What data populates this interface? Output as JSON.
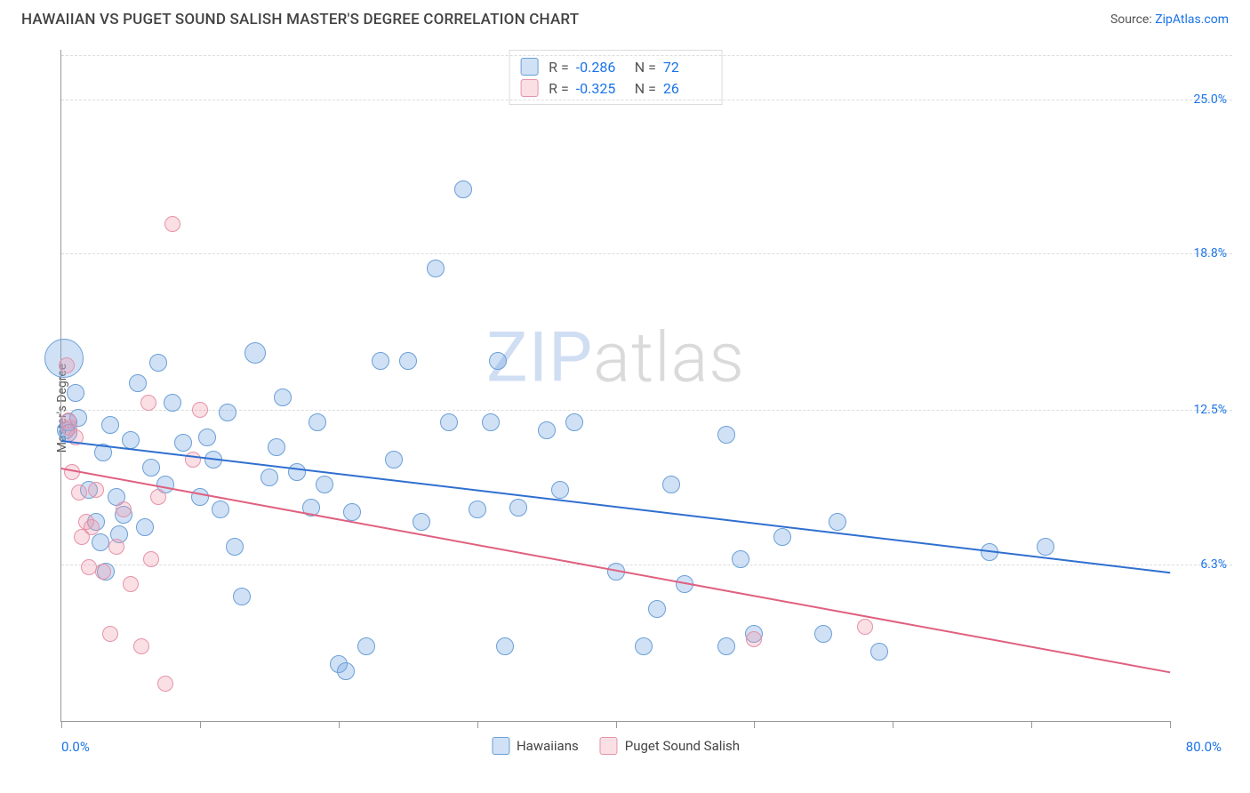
{
  "title": "HAWAIIAN VS PUGET SOUND SALISH MASTER'S DEGREE CORRELATION CHART",
  "source_prefix": "Source: ",
  "source_link_text": "ZipAtlas.com",
  "yaxis_title": "Master's Degree",
  "watermark_a": "ZIP",
  "watermark_b": "atlas",
  "chart": {
    "type": "scatter",
    "xlim": [
      0,
      80
    ],
    "ylim": [
      0,
      27
    ],
    "x_min_label": "0.0%",
    "x_max_label": "80.0%",
    "x_ticks": [
      0,
      10,
      20,
      30,
      40,
      50,
      60,
      70,
      80
    ],
    "y_gridlines": [
      {
        "v": 6.3,
        "label": "6.3%",
        "color": "#1a73e8"
      },
      {
        "v": 12.5,
        "label": "12.5%",
        "color": "#1a73e8"
      },
      {
        "v": 18.8,
        "label": "18.8%",
        "color": "#1a73e8"
      },
      {
        "v": 25.0,
        "label": "25.0%",
        "color": "#1a73e8"
      }
    ],
    "background_color": "#ffffff",
    "grid_color": "#dddddd",
    "series": [
      {
        "name": "Hawaiians",
        "fill": "rgba(120,170,230,0.35)",
        "stroke": "#6b9fd6",
        "trend_color": "#2f6fd0",
        "trend": {
          "x1": 0,
          "y1": 11.3,
          "x2": 80,
          "y2": 6.0
        },
        "R": "-0.286",
        "N": "72",
        "marker_r": 10,
        "points": [
          [
            0.2,
            14.6,
            22
          ],
          [
            0.3,
            11.7
          ],
          [
            0.5,
            12.0
          ],
          [
            0.5,
            11.6
          ],
          [
            1.0,
            13.2
          ],
          [
            1.2,
            12.2
          ],
          [
            2.0,
            9.3
          ],
          [
            2.5,
            8.0
          ],
          [
            2.8,
            7.2
          ],
          [
            3.0,
            10.8
          ],
          [
            3.2,
            6.0
          ],
          [
            3.5,
            11.9
          ],
          [
            4.0,
            9.0
          ],
          [
            4.2,
            7.5
          ],
          [
            4.5,
            8.3
          ],
          [
            5.0,
            11.3
          ],
          [
            5.5,
            13.6
          ],
          [
            6.0,
            7.8
          ],
          [
            6.5,
            10.2
          ],
          [
            7.0,
            14.4
          ],
          [
            7.5,
            9.5
          ],
          [
            8.0,
            12.8
          ],
          [
            8.8,
            11.2
          ],
          [
            10.0,
            9.0
          ],
          [
            10.5,
            11.4
          ],
          [
            11.0,
            10.5
          ],
          [
            11.5,
            8.5
          ],
          [
            12.0,
            12.4
          ],
          [
            12.5,
            7.0
          ],
          [
            13.0,
            5.0
          ],
          [
            14.0,
            14.8,
            12
          ],
          [
            15.0,
            9.8
          ],
          [
            15.5,
            11.0
          ],
          [
            16.0,
            13.0
          ],
          [
            17.0,
            10.0
          ],
          [
            18.0,
            8.6
          ],
          [
            18.5,
            12.0
          ],
          [
            19.0,
            9.5
          ],
          [
            20.0,
            2.3
          ],
          [
            20.5,
            2.0
          ],
          [
            21.0,
            8.4
          ],
          [
            22.0,
            3.0
          ],
          [
            23.0,
            14.5
          ],
          [
            24.0,
            10.5
          ],
          [
            25.0,
            14.5
          ],
          [
            26.0,
            8.0
          ],
          [
            27.0,
            18.2
          ],
          [
            28.0,
            12.0
          ],
          [
            29.0,
            21.4
          ],
          [
            30.0,
            8.5
          ],
          [
            31.5,
            14.5
          ],
          [
            31.0,
            12.0
          ],
          [
            32.0,
            3.0
          ],
          [
            33.0,
            8.6
          ],
          [
            35.0,
            11.7
          ],
          [
            36.0,
            9.3
          ],
          [
            37.0,
            12.0
          ],
          [
            40.0,
            6.0
          ],
          [
            42.0,
            3.0
          ],
          [
            43.0,
            4.5
          ],
          [
            44.0,
            9.5
          ],
          [
            45.0,
            5.5
          ],
          [
            48.0,
            3.0
          ],
          [
            49.0,
            6.5
          ],
          [
            50.0,
            3.5
          ],
          [
            52.0,
            7.4
          ],
          [
            55.0,
            3.5
          ],
          [
            56.0,
            8.0
          ],
          [
            59.0,
            2.8
          ],
          [
            67.0,
            6.8
          ],
          [
            71.0,
            7.0
          ],
          [
            48.0,
            11.5
          ]
        ]
      },
      {
        "name": "Puget Sound Salish",
        "fill": "rgba(240,150,170,0.30)",
        "stroke": "#e593a8",
        "trend_color": "#e0607f",
        "trend": {
          "x1": 0,
          "y1": 10.2,
          "x2": 80,
          "y2": 2.0
        },
        "R": "-0.325",
        "N": "26",
        "marker_r": 9,
        "points": [
          [
            0.4,
            14.3
          ],
          [
            0.5,
            12.1
          ],
          [
            0.6,
            11.8
          ],
          [
            0.8,
            10.0
          ],
          [
            1.0,
            11.4
          ],
          [
            1.3,
            9.2
          ],
          [
            1.5,
            7.4
          ],
          [
            1.8,
            8.0
          ],
          [
            2.0,
            6.2
          ],
          [
            2.2,
            7.8
          ],
          [
            2.5,
            9.3
          ],
          [
            3.0,
            6.0
          ],
          [
            3.5,
            3.5
          ],
          [
            4.0,
            7.0
          ],
          [
            4.5,
            8.5
          ],
          [
            5.0,
            5.5
          ],
          [
            5.8,
            3.0
          ],
          [
            6.3,
            12.8
          ],
          [
            6.5,
            6.5
          ],
          [
            7.0,
            9.0
          ],
          [
            7.5,
            1.5
          ],
          [
            8.0,
            20.0
          ],
          [
            9.5,
            10.5
          ],
          [
            10.0,
            12.5
          ],
          [
            50.0,
            3.3
          ],
          [
            58.0,
            3.8
          ]
        ]
      }
    ]
  },
  "legend": {
    "series1_label": "Hawaiians",
    "series2_label": "Puget Sound Salish"
  },
  "stats_labels": {
    "R": "R =",
    "N": "N ="
  }
}
